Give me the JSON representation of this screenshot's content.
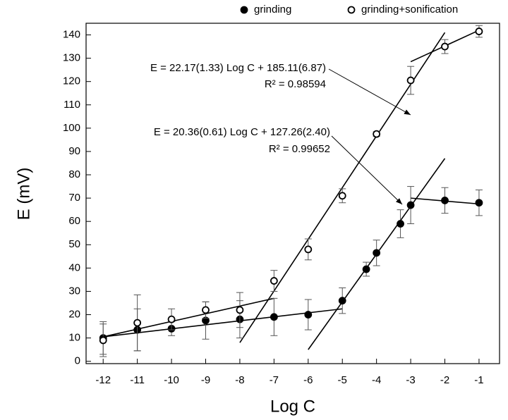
{
  "chart_data": {
    "type": "scatter",
    "xlabel": "Log C",
    "ylabel": "E (mV)",
    "xlim": [
      -12.5,
      -0.4
    ],
    "ylim": [
      -1,
      145
    ],
    "xticks": [
      -12,
      -11,
      -10,
      -9,
      -8,
      -7,
      -6,
      -5,
      -4,
      -3,
      -2,
      -1
    ],
    "yticks": [
      0,
      10,
      20,
      30,
      40,
      50,
      60,
      70,
      80,
      90,
      100,
      110,
      120,
      130,
      140
    ],
    "legend": "top",
    "series": [
      {
        "name": "grinding",
        "color": "#000000",
        "filled": true,
        "x": [
          -12,
          -11,
          -10,
          -9,
          -8,
          -7,
          -6,
          -5,
          -4.3,
          -4,
          -3.3,
          -3,
          -2,
          -1
        ],
        "values": [
          10,
          13.5,
          14,
          17.5,
          18,
          19,
          20,
          26,
          39.5,
          46.5,
          59,
          67,
          69,
          68
        ],
        "errors": [
          7,
          9,
          3,
          8,
          8,
          8,
          6.5,
          5.5,
          3,
          5.5,
          6,
          8,
          5.5,
          5.5
        ]
      },
      {
        "name": "grinding+sonification",
        "color": "#000000",
        "filled": false,
        "x": [
          -12,
          -11,
          -10,
          -9,
          -8,
          -7,
          -6,
          -5,
          -4,
          -3,
          -2,
          -1
        ],
        "values": [
          9,
          16.5,
          18,
          22,
          22,
          34.5,
          48,
          71,
          97.5,
          120.5,
          135,
          141.5
        ],
        "errors": [
          7,
          12,
          4.5,
          3.5,
          7.5,
          4.5,
          4.5,
          3,
          1,
          6,
          3,
          2.5
        ]
      }
    ],
    "fits": [
      {
        "x": [
          -12,
          -5
        ],
        "values": [
          10.5,
          22.5
        ]
      },
      {
        "x": [
          -6,
          -2
        ],
        "values": [
          5,
          87
        ]
      },
      {
        "x": [
          -3,
          -1
        ],
        "values": [
          70,
          67.5
        ]
      },
      {
        "x": [
          -12,
          -7
        ],
        "values": [
          10.5,
          27
        ]
      },
      {
        "x": [
          -8,
          -2
        ],
        "values": [
          8,
          141
        ]
      },
      {
        "x": [
          -3,
          -1
        ],
        "values": [
          128.5,
          142
        ]
      }
    ],
    "annotations": [
      {
        "equation": "E = 22.17(1.33) Log C + 185.11(6.87)",
        "r2": "R² = 0.98594"
      },
      {
        "equation": "E = 20.36(0.61) Log C + 127.26(2.40)",
        "r2": "R² = 0.99652"
      }
    ]
  }
}
